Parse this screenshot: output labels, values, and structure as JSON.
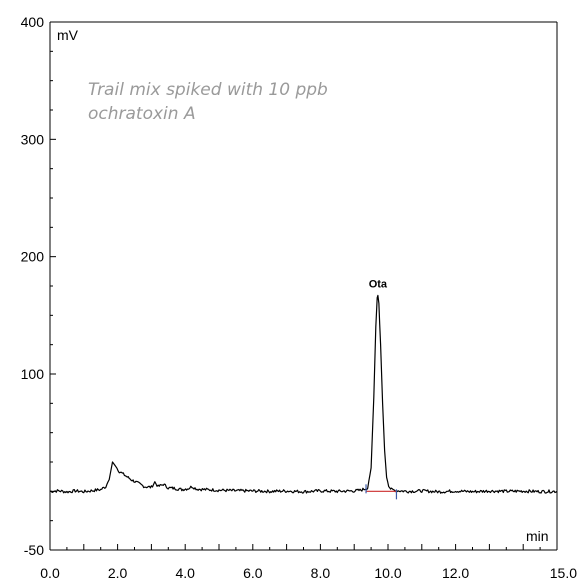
{
  "chart_data": {
    "type": "line",
    "title": "",
    "xlabel": "min",
    "ylabel": "mV",
    "xlim": [
      0.0,
      15.0
    ],
    "ylim": [
      -50,
      400
    ],
    "x_ticks": [
      0.0,
      2.0,
      4.0,
      6.0,
      8.0,
      10.0,
      12.0,
      15.0
    ],
    "x_tick_labels": [
      "0.0",
      "2.0",
      "4.0",
      "6.0",
      "8.0",
      "10.0",
      "12.0",
      "15.0"
    ],
    "y_ticks": [
      -50,
      100,
      200,
      300,
      400
    ],
    "y_tick_labels": [
      "-50",
      "100",
      "200",
      "300",
      "400"
    ],
    "annotation": [
      "Trail mix spiked with 10 ppb",
      "ochratoxin A"
    ],
    "peaks": [
      {
        "label": "Ota",
        "x": 9.7,
        "y": 167
      }
    ],
    "series": [
      {
        "values": [
          [
            0.0,
            0.0
          ],
          [
            0.25,
            0.5
          ],
          [
            0.5,
            -0.5
          ],
          [
            0.75,
            0.4
          ],
          [
            1.0,
            -0.3
          ],
          [
            1.25,
            0.6
          ],
          [
            1.5,
            1.5
          ],
          [
            1.65,
            4.0
          ],
          [
            1.75,
            10.0
          ],
          [
            1.85,
            25.0
          ],
          [
            1.95,
            21.0
          ],
          [
            2.05,
            17.0
          ],
          [
            2.2,
            14.0
          ],
          [
            2.4,
            10.0
          ],
          [
            2.6,
            7.0
          ],
          [
            2.8,
            4.0
          ],
          [
            3.0,
            3.5
          ],
          [
            3.1,
            8.0
          ],
          [
            3.2,
            4.0
          ],
          [
            3.35,
            6.0
          ],
          [
            3.5,
            3.0
          ],
          [
            3.7,
            2.5
          ],
          [
            3.9,
            1.5
          ],
          [
            4.1,
            2.5
          ],
          [
            4.2,
            4.0
          ],
          [
            4.35,
            2.0
          ],
          [
            4.6,
            1.5
          ],
          [
            5.0,
            1.0
          ],
          [
            5.5,
            0.5
          ],
          [
            6.0,
            0.3
          ],
          [
            6.5,
            0.0
          ],
          [
            7.0,
            0.3
          ],
          [
            7.5,
            -0.3
          ],
          [
            8.0,
            0.4
          ],
          [
            8.5,
            0.0
          ],
          [
            9.0,
            0.4
          ],
          [
            9.2,
            1.0
          ],
          [
            9.4,
            3.0
          ],
          [
            9.5,
            20.0
          ],
          [
            9.58,
            80.0
          ],
          [
            9.64,
            140.0
          ],
          [
            9.68,
            165.0
          ],
          [
            9.7,
            167.0
          ],
          [
            9.73,
            160.0
          ],
          [
            9.78,
            125.0
          ],
          [
            9.84,
            75.0
          ],
          [
            9.9,
            35.0
          ],
          [
            9.96,
            12.0
          ],
          [
            10.02,
            4.0
          ],
          [
            10.1,
            1.5
          ],
          [
            10.3,
            0.5
          ],
          [
            10.6,
            0.0
          ],
          [
            11.0,
            0.4
          ],
          [
            11.5,
            -0.4
          ],
          [
            12.0,
            0.3
          ],
          [
            12.5,
            -0.3
          ],
          [
            13.0,
            0.3
          ],
          [
            13.5,
            0.0
          ],
          [
            14.0,
            0.2
          ],
          [
            14.5,
            -0.2
          ],
          [
            15.0,
            0.0
          ]
        ]
      }
    ],
    "baseline_segment": [
      9.35,
      10.25
    ],
    "colors": {
      "trace": "#000000",
      "baseline": "#cc2b2b",
      "markers": "#3b5aa8",
      "annotation": "#9a9a9a"
    }
  }
}
